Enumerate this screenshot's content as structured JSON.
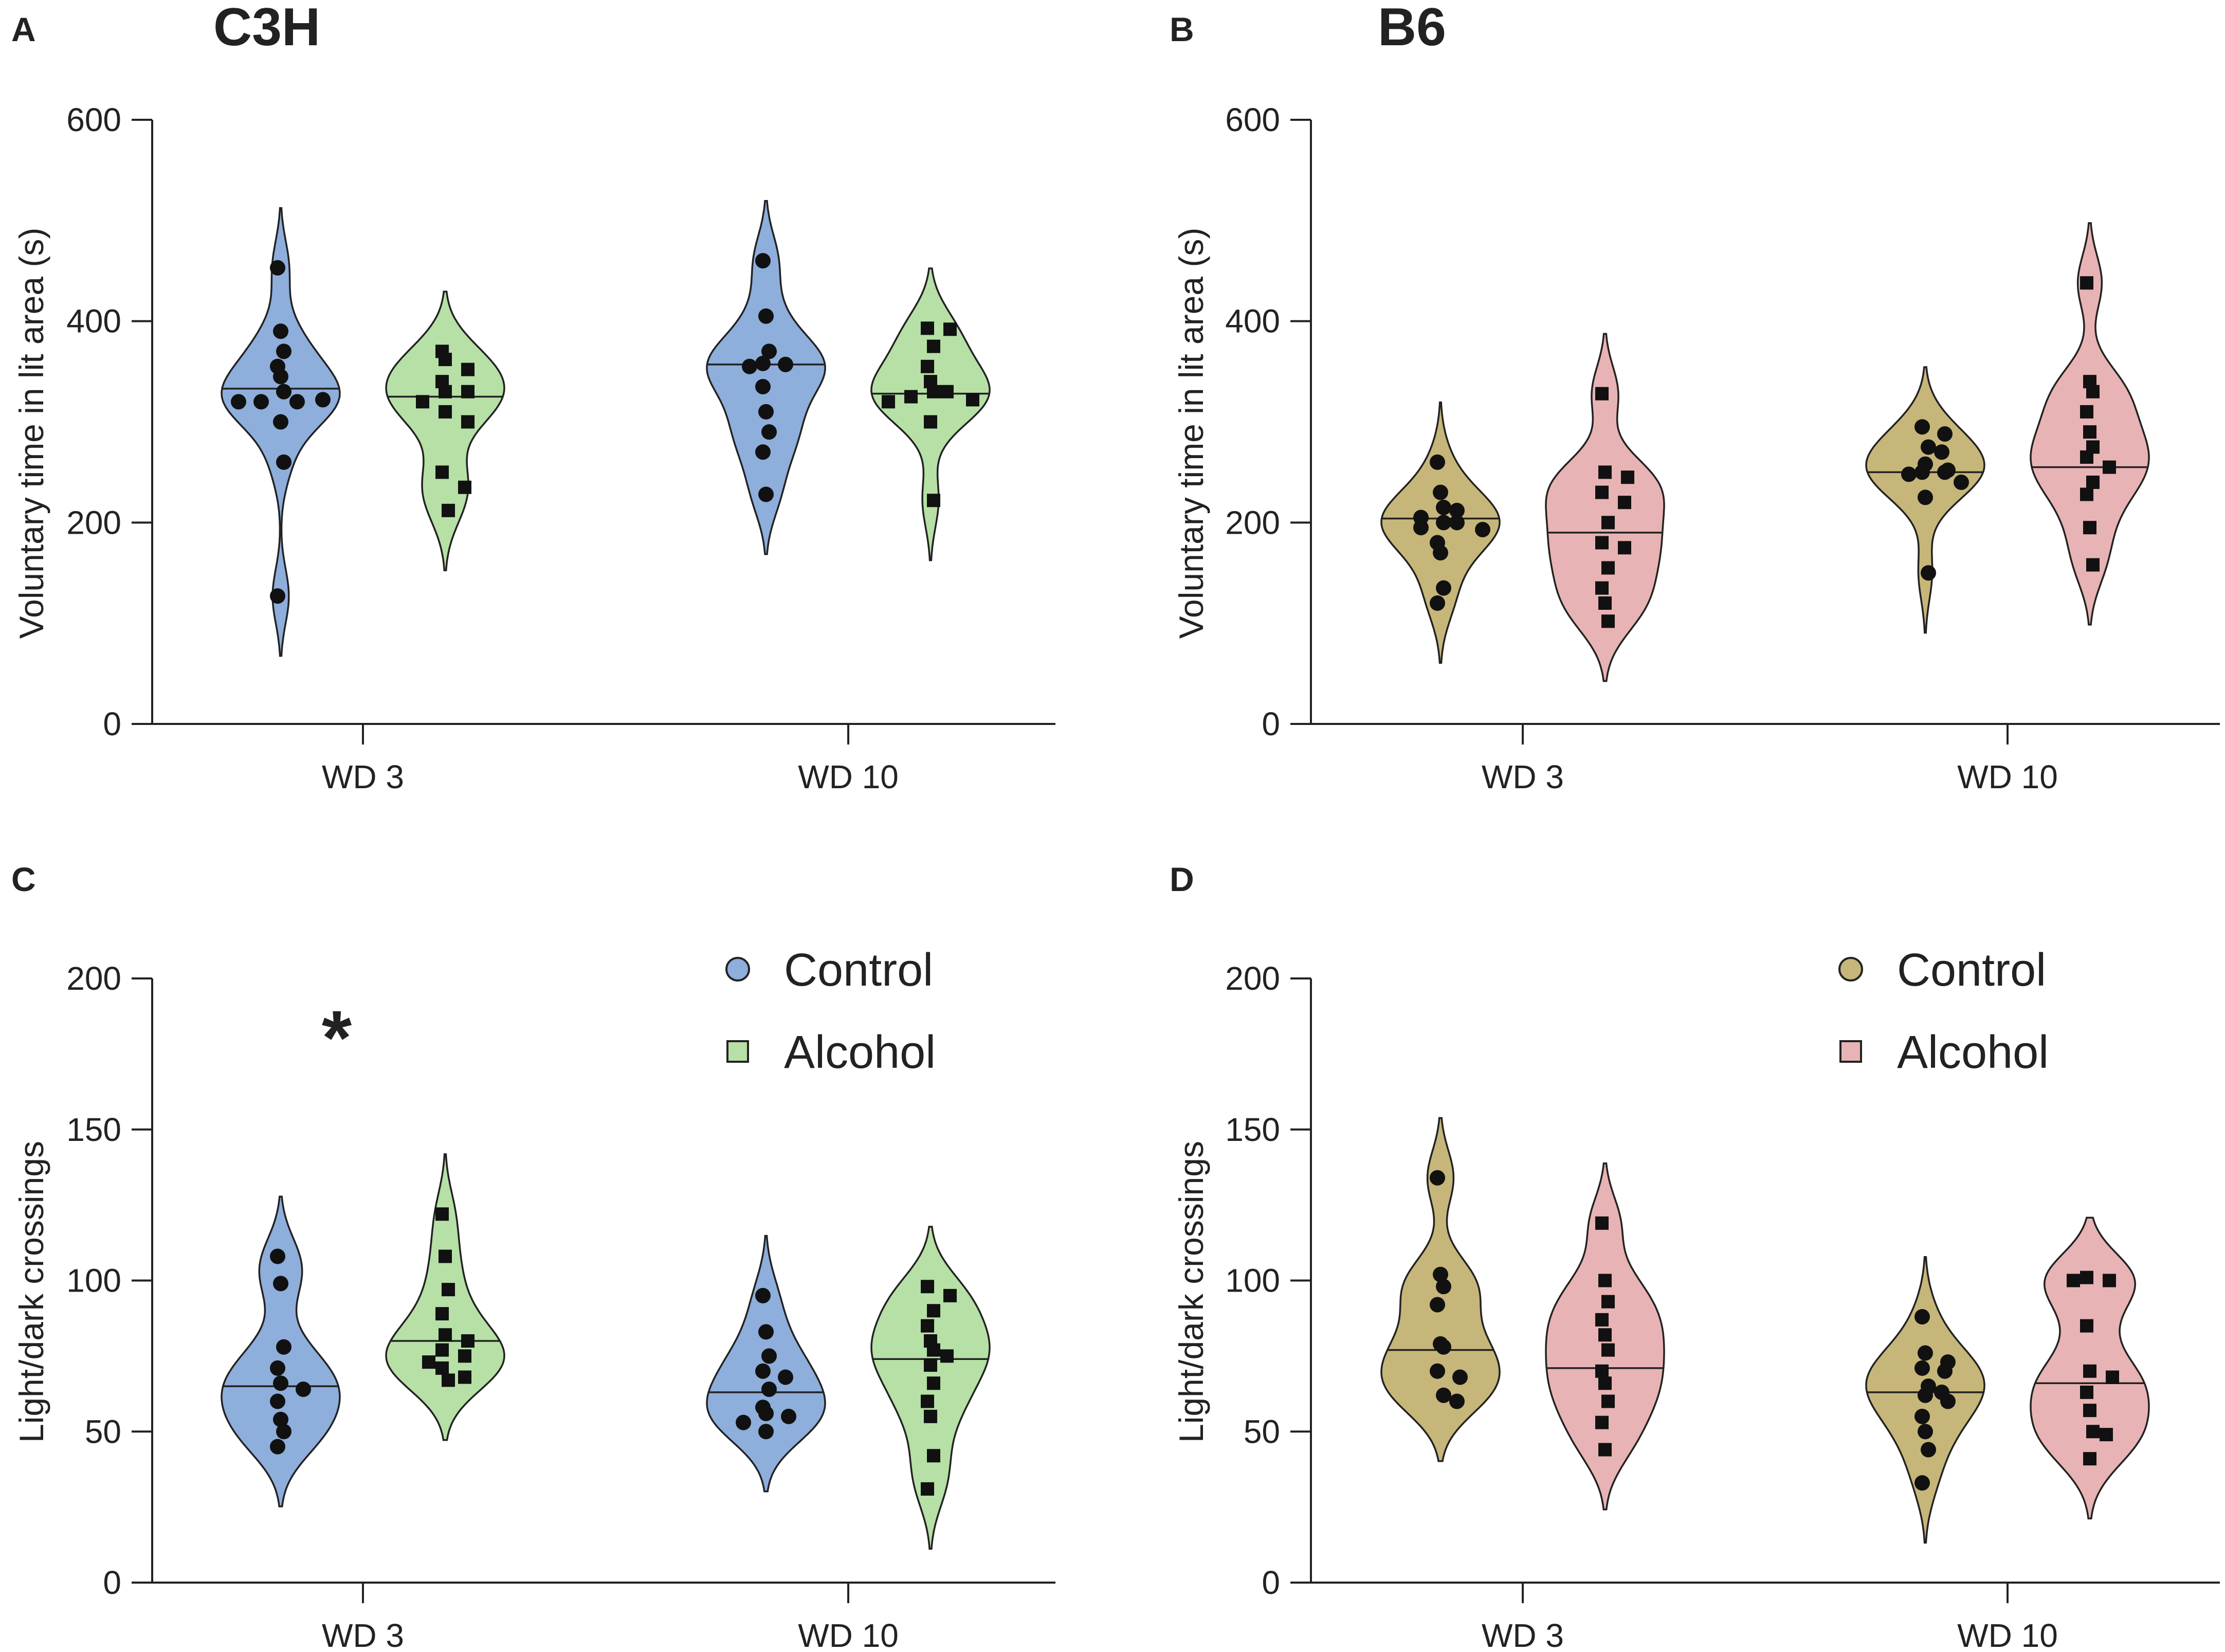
{
  "figure": {
    "description_free": true,
    "panels": [
      "A",
      "B",
      "C",
      "D"
    ]
  },
  "chart_data": [
    {
      "id": "A",
      "panel_letter": "A",
      "strain_title": "C3H",
      "type": "violin",
      "ylabel": "Voluntary time in lit area (s)",
      "ylim": [
        0,
        600
      ],
      "yticks": [
        0,
        200,
        400,
        600
      ],
      "categories": [
        "WD 3",
        "WD 10"
      ],
      "colors": {
        "Control": "#8eaedb",
        "Alcohol": "#b6e0a6"
      },
      "series": [
        {
          "name": "Control",
          "marker": "circle",
          "median": [
            333,
            357
          ],
          "points": [
            [
              453,
              390,
              370,
              355,
              345,
              330,
              320,
              320,
              322,
              320,
              300,
              260,
              127
            ],
            [
              460,
              405,
              370,
              358,
              357,
              355,
              335,
              310,
              290,
              270,
              228
            ]
          ]
        },
        {
          "name": "Alcohol",
          "marker": "square",
          "median": [
            325,
            328
          ],
          "points": [
            [
              370,
              362,
              352,
              340,
              330,
              330,
              320,
              310,
              300,
              250,
              235,
              212
            ],
            [
              393,
              392,
              375,
              355,
              340,
              330,
              330,
              325,
              322,
              320,
              300,
              222
            ]
          ]
        }
      ],
      "annotation": "",
      "legend": null
    },
    {
      "id": "B",
      "panel_letter": "B",
      "strain_title": "B6",
      "type": "violin",
      "ylabel": "Voluntary time in lit area (s)",
      "ylim": [
        0,
        600
      ],
      "yticks": [
        0,
        200,
        400,
        600
      ],
      "categories": [
        "WD 3",
        "WD 10"
      ],
      "colors": {
        "Control": "#c6b679",
        "Alcohol": "#e8b3b4"
      },
      "series": [
        {
          "name": "Control",
          "marker": "circle",
          "median": [
            204,
            250
          ],
          "points": [
            [
              260,
              230,
              215,
              212,
              205,
              200,
              200,
              195,
              193,
              180,
              170,
              135,
              120
            ],
            [
              295,
              288,
              275,
              270,
              258,
              252,
              250,
              250,
              248,
              240,
              225,
              150
            ]
          ]
        },
        {
          "name": "Alcohol",
          "marker": "square",
          "median": [
            190,
            255
          ],
          "points": [
            [
              328,
              250,
              245,
              230,
              220,
              200,
              180,
              175,
              155,
              135,
              120,
              102
            ],
            [
              438,
              340,
              330,
              310,
              290,
              275,
              265,
              255,
              240,
              228,
              195,
              158
            ]
          ]
        }
      ],
      "annotation": "",
      "legend": null
    },
    {
      "id": "C",
      "panel_letter": "C",
      "strain_title": "",
      "type": "violin",
      "ylabel": "Light/dark crossings",
      "ylim": [
        0,
        200
      ],
      "yticks": [
        0,
        50,
        100,
        150,
        200
      ],
      "categories": [
        "WD 3",
        "WD 10"
      ],
      "colors": {
        "Control": "#8eaedb",
        "Alcohol": "#b6e0a6"
      },
      "series": [
        {
          "name": "Control",
          "marker": "circle",
          "median": [
            65,
            63
          ],
          "points": [
            [
              108,
              99,
              78,
              71,
              66,
              64,
              60,
              54,
              50,
              45
            ],
            [
              95,
              83,
              75,
              70,
              68,
              64,
              58,
              56,
              55,
              53,
              50
            ]
          ]
        },
        {
          "name": "Alcohol",
          "marker": "square",
          "median": [
            80,
            74
          ],
          "points": [
            [
              122,
              108,
              97,
              89,
              82,
              80,
              77,
              75,
              73,
              71,
              68,
              67
            ],
            [
              98,
              95,
              90,
              85,
              80,
              77,
              75,
              72,
              66,
              60,
              55,
              42,
              31
            ]
          ]
        }
      ],
      "annotation": "*",
      "legend": {
        "position": "top-right",
        "items": [
          "Control",
          "Alcohol"
        ]
      }
    },
    {
      "id": "D",
      "panel_letter": "D",
      "strain_title": "",
      "type": "violin",
      "ylabel": "Light/dark crossings",
      "ylim": [
        0,
        200
      ],
      "yticks": [
        0,
        50,
        100,
        150,
        200
      ],
      "categories": [
        "WD 3",
        "WD 10"
      ],
      "colors": {
        "Control": "#c6b679",
        "Alcohol": "#e8b3b4"
      },
      "series": [
        {
          "name": "Control",
          "marker": "circle",
          "median": [
            77,
            63
          ],
          "points": [
            [
              134,
              102,
              98,
              92,
              79,
              78,
              70,
              68,
              62,
              60
            ],
            [
              88,
              76,
              73,
              71,
              70,
              65,
              63,
              62,
              60,
              55,
              50,
              44,
              33
            ]
          ]
        },
        {
          "name": "Alcohol",
          "marker": "square",
          "median": [
            71,
            66
          ],
          "points": [
            [
              119,
              100,
              93,
              87,
              82,
              77,
              70,
              66,
              60,
              53,
              44
            ],
            [
              101,
              100,
              100,
              85,
              70,
              68,
              63,
              57,
              50,
              49,
              41
            ]
          ]
        }
      ],
      "annotation": "",
      "legend": {
        "position": "top-right",
        "items": [
          "Control",
          "Alcohol"
        ]
      }
    }
  ]
}
